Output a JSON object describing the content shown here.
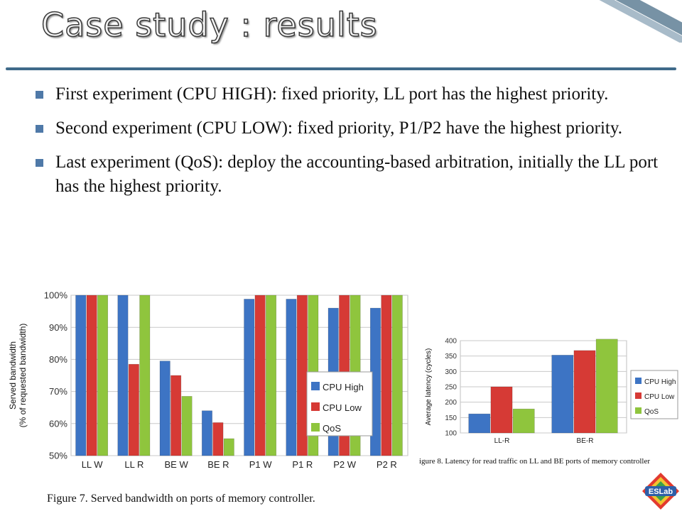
{
  "slide": {
    "title": "Case study : results",
    "bullets": [
      "First experiment (CPU HIGH): fixed priority, LL port has the highest priority.",
      "Second experiment (CPU LOW): fixed priority, P1/P2 have the highest priority.",
      "Last experiment (QoS): deploy the accounting-based arbitration, initially the LL port has the highest priority."
    ],
    "captions": {
      "figure7": "Figure 7.    Served bandwidth on ports of memory controller.",
      "figure8": "igure 8.    Latency for read traffic on LL and BE ports of memory controller"
    },
    "logo_text": "ESLab",
    "colors": {
      "cpu_high": "#3d74c4",
      "cpu_low": "#d63a35",
      "qos": "#8fc53d",
      "rule": "#3f6a8a"
    }
  },
  "chart_data": [
    {
      "type": "bar",
      "ylabel": "Served bandwidth (% of requested bandwidth)",
      "ylim": [
        50,
        100
      ],
      "yticks": [
        "50%",
        "60%",
        "70%",
        "80%",
        "90%",
        "100%"
      ],
      "categories": [
        "LL W",
        "LL R",
        "BE W",
        "BE R",
        "P1 W",
        "P1 R",
        "P2 W",
        "P2 R"
      ],
      "series": [
        {
          "name": "CPU High",
          "values": [
            100,
            100,
            79.5,
            64,
            98.8,
            98.8,
            96,
            96
          ]
        },
        {
          "name": "CPU Low",
          "values": [
            100,
            78.5,
            75,
            60.3,
            100,
            100,
            100,
            100
          ]
        },
        {
          "name": "QoS",
          "values": [
            100,
            100,
            68.5,
            55.3,
            100,
            100,
            100,
            100
          ]
        }
      ],
      "legend": "right",
      "grid": true
    },
    {
      "type": "bar",
      "ylabel": "Average latency (cycles)",
      "ylim": [
        100,
        400
      ],
      "yticks": [
        "100",
        "150",
        "200",
        "250",
        "300",
        "350",
        "400"
      ],
      "categories": [
        "LL-R",
        "BE-R"
      ],
      "series": [
        {
          "name": "CPU High",
          "values": [
            162,
            353
          ]
        },
        {
          "name": "CPU Low",
          "values": [
            250,
            368
          ]
        },
        {
          "name": "QoS",
          "values": [
            178,
            405
          ]
        }
      ],
      "legend": "right",
      "grid": true
    }
  ]
}
